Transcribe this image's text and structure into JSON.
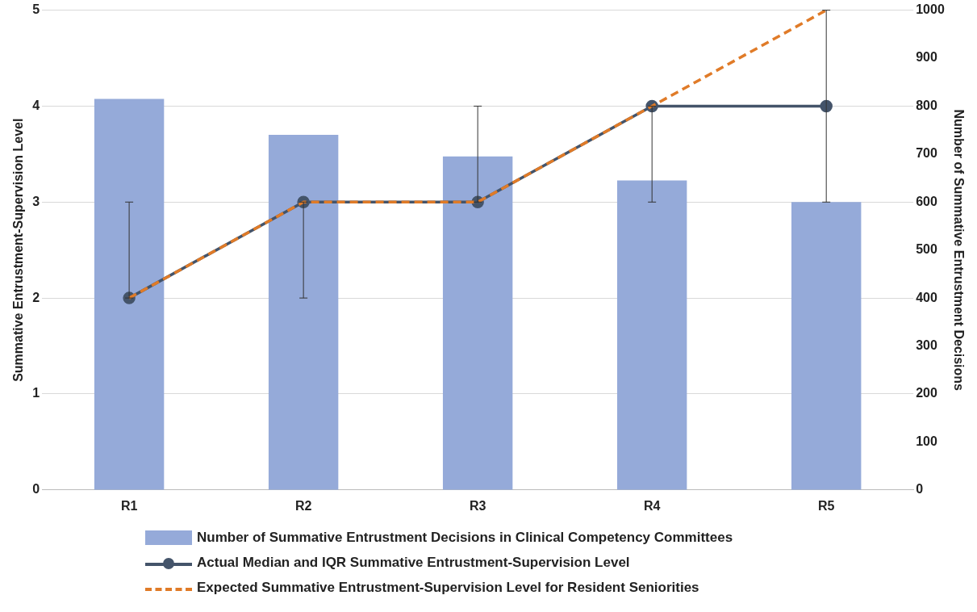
{
  "chart_data": {
    "type": "bar",
    "categories": [
      "R1",
      "R2",
      "R3",
      "R4",
      "R5"
    ],
    "ylabel": "Summative Entrustment-Supervision Level",
    "y2label": "Number of Summative Entrustment Decisions",
    "ylim": [
      0,
      5
    ],
    "yticks": [
      0,
      1,
      2,
      3,
      4,
      5
    ],
    "y2lim": [
      0,
      1000
    ],
    "y2ticks": [
      0,
      100,
      200,
      300,
      400,
      500,
      600,
      700,
      800,
      900,
      1000
    ],
    "grid": "y",
    "legend": "bottom",
    "series": [
      {
        "name": "Number of Summative Entrustment Decisions in Clinical Competency Committees",
        "axis": "y2",
        "color": "#95aad9",
        "values": [
          815,
          740,
          695,
          645,
          600
        ]
      },
      {
        "name": "Actual Median and IQR Summative Entrustment-Supervision Level",
        "type": "line",
        "color": "#44546a",
        "marker": "circle",
        "line_style": "solid",
        "values": [
          2,
          3,
          3,
          4,
          4
        ],
        "errors": [
          [
            2,
            3
          ],
          [
            2,
            3
          ],
          [
            3,
            4
          ],
          [
            3,
            4
          ],
          [
            3,
            5
          ]
        ]
      },
      {
        "name": "Expected Summative Entrustment-Supervision Level for Resident Seniorities",
        "type": "line",
        "color": "#e07b28",
        "marker": "none",
        "line_style": "dashed",
        "values": [
          2,
          3,
          3,
          4,
          5
        ]
      }
    ]
  }
}
